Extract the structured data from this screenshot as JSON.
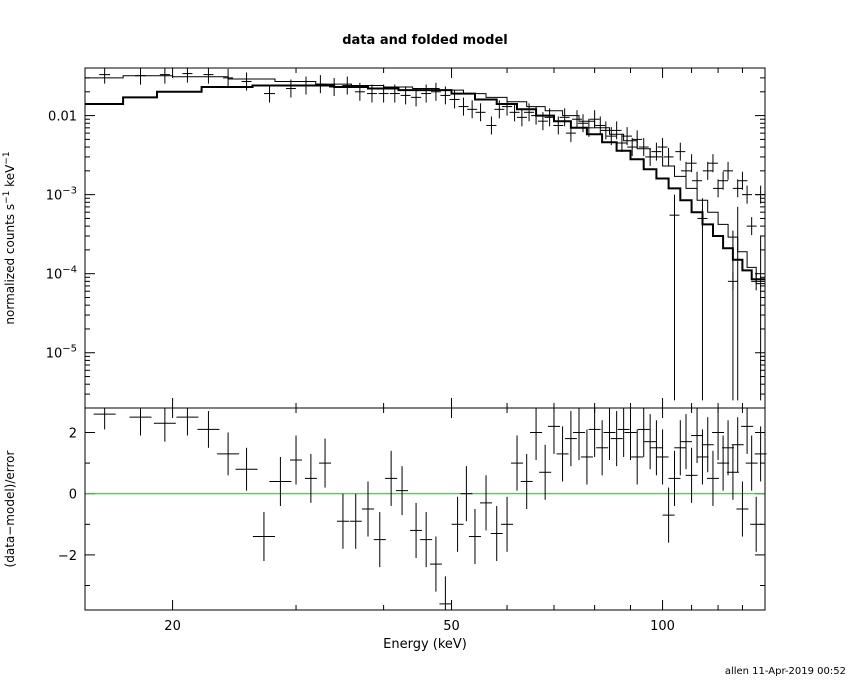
{
  "title": "data and folded model",
  "footer": "allen 11-Apr-2019 00:52",
  "colors": {
    "axis": "#000000",
    "zero_line": "#33cc33"
  },
  "chart_data": [
    {
      "type": "scatter",
      "panel": "upper",
      "scale": "log-log",
      "title": "data and folded model",
      "ylabel_main": "normalized counts s",
      "ylabel_sup1": "−1",
      "ylabel_mid": " keV",
      "ylabel_sup2": "−1",
      "xlim": [
        15,
        140
      ],
      "ylim": [
        2e-06,
        0.04
      ],
      "y_ticks": [
        {
          "value": 0.01,
          "mantissa": "0.01",
          "exp": ""
        },
        {
          "value": 0.001,
          "mantissa": "10",
          "exp": "−3"
        },
        {
          "value": 0.0001,
          "mantissa": "10",
          "exp": "−4"
        },
        {
          "value": 1e-05,
          "mantissa": "10",
          "exp": "−5"
        }
      ],
      "series": [
        {
          "kind": "data",
          "points": [
            [
              16.0,
              0.033,
              1.0
            ],
            [
              18.0,
              0.032,
              1.0
            ],
            [
              19.5,
              0.033,
              0.7
            ],
            [
              21.0,
              0.034,
              0.8
            ],
            [
              22.5,
              0.033,
              0.7
            ],
            [
              24.0,
              0.03,
              0.7
            ],
            [
              25.5,
              0.027,
              0.7
            ],
            [
              27.5,
              0.019,
              1.0
            ],
            [
              29.5,
              0.022,
              0.8
            ],
            [
              31.0,
              0.024,
              0.8
            ],
            [
              32.5,
              0.025,
              0.7
            ],
            [
              34.0,
              0.023,
              0.7
            ],
            [
              35.5,
              0.024,
              0.7
            ],
            [
              37.0,
              0.02,
              0.7
            ],
            [
              38.5,
              0.019,
              0.7
            ],
            [
              40.0,
              0.019,
              0.7
            ],
            [
              41.5,
              0.019,
              0.7
            ],
            [
              43.0,
              0.018,
              0.7
            ],
            [
              44.5,
              0.017,
              0.6
            ],
            [
              46.0,
              0.019,
              0.6
            ],
            [
              47.5,
              0.02,
              0.6
            ],
            [
              49.0,
              0.018,
              0.6
            ],
            [
              50.5,
              0.016,
              0.6
            ],
            [
              52.0,
              0.013,
              0.6
            ],
            [
              53.5,
              0.012,
              0.6
            ],
            [
              55.0,
              0.011,
              0.6
            ],
            [
              57.0,
              0.0075,
              0.6
            ],
            [
              58.5,
              0.012,
              0.6
            ],
            [
              60.0,
              0.013,
              0.6
            ],
            [
              61.5,
              0.011,
              0.6
            ],
            [
              63.0,
              0.0095,
              0.6
            ],
            [
              64.5,
              0.011,
              0.6
            ],
            [
              66.0,
              0.01,
              0.6
            ],
            [
              67.5,
              0.0085,
              0.6
            ],
            [
              69.0,
              0.0095,
              0.6
            ],
            [
              71.0,
              0.0075,
              0.6
            ],
            [
              72.5,
              0.0095,
              0.6
            ],
            [
              74.0,
              0.006,
              0.6
            ],
            [
              75.5,
              0.009,
              0.6
            ],
            [
              77.0,
              0.008,
              0.6
            ],
            [
              78.5,
              0.007,
              0.6
            ],
            [
              80.0,
              0.009,
              0.6
            ],
            [
              81.5,
              0.0075,
              0.6
            ],
            [
              83.0,
              0.0065,
              0.6
            ],
            [
              84.5,
              0.0055,
              0.6
            ],
            [
              86.0,
              0.0065,
              0.6
            ],
            [
              87.5,
              0.0045,
              0.6
            ],
            [
              89.0,
              0.0055,
              0.6
            ],
            [
              90.5,
              0.004,
              0.6
            ],
            [
              92.0,
              0.005,
              0.6
            ],
            [
              94.0,
              0.004,
              0.6
            ],
            [
              96.0,
              0.003,
              0.6
            ],
            [
              98.0,
              0.0035,
              0.6
            ],
            [
              100.0,
              0.004,
              0.6
            ],
            [
              102.0,
              0.003,
              0.6
            ],
            [
              104.0,
              0.00055,
              0.6
            ],
            [
              106.0,
              0.0035,
              0.6
            ],
            [
              108.0,
              0.002,
              0.6
            ],
            [
              110.0,
              0.0025,
              0.6
            ],
            [
              112.0,
              0.0015,
              0.6
            ],
            [
              114.0,
              0.0005,
              0.6
            ],
            [
              116.0,
              0.002,
              0.6
            ],
            [
              118.0,
              0.0025,
              0.6
            ],
            [
              120.0,
              0.0012,
              0.6
            ],
            [
              122.0,
              0.0015,
              0.6
            ],
            [
              124.0,
              0.002,
              0.6
            ],
            [
              126.0,
              8e-05,
              0.6
            ],
            [
              128.0,
              0.0012,
              0.6
            ],
            [
              130.0,
              0.0015,
              0.6
            ],
            [
              132.0,
              0.001,
              0.6
            ],
            [
              134.0,
              0.0004,
              0.6
            ],
            [
              136.0,
              8e-05,
              0.6
            ],
            [
              138.0,
              0.001,
              0.6
            ]
          ],
          "long_error_bars": [
            [
              104.0,
              2.5e-06,
              0.001
            ],
            [
              114.0,
              2.5e-06,
              0.0009
            ],
            [
              126.0,
              2.5e-06,
              0.00035
            ],
            [
              128.0,
              2.5e-06,
              0.0007
            ],
            [
              138.0,
              2.5e-06,
              0.0003
            ]
          ]
        },
        {
          "kind": "model",
          "name": "folded model (thin)",
          "steps": [
            [
              15.0,
              0.03
            ],
            [
              17.0,
              0.032
            ],
            [
              20.0,
              0.031
            ],
            [
              24.0,
              0.029
            ],
            [
              28.0,
              0.027
            ],
            [
              32.0,
              0.025
            ],
            [
              36.0,
              0.024
            ],
            [
              40.0,
              0.023
            ],
            [
              44.0,
              0.022
            ],
            [
              48.0,
              0.021
            ],
            [
              52.0,
              0.019
            ],
            [
              56.0,
              0.017
            ],
            [
              60.0,
              0.015
            ],
            [
              64.0,
              0.013
            ],
            [
              68.0,
              0.0115
            ],
            [
              72.0,
              0.01
            ],
            [
              76.0,
              0.0085
            ],
            [
              80.0,
              0.007
            ],
            [
              84.0,
              0.0058
            ],
            [
              88.0,
              0.0048
            ],
            [
              92.0,
              0.0038
            ],
            [
              96.0,
              0.003
            ],
            [
              100.0,
              0.0023
            ],
            [
              104.0,
              0.0017
            ],
            [
              108.0,
              0.0012
            ],
            [
              112.0,
              0.00085
            ],
            [
              116.0,
              0.0006
            ],
            [
              120.0,
              0.00042
            ],
            [
              124.0,
              0.00029
            ],
            [
              128.0,
              0.00019
            ],
            [
              132.0,
              0.00012
            ],
            [
              136.0,
              7.5e-05
            ],
            [
              140.0,
              5e-05
            ]
          ]
        },
        {
          "kind": "model",
          "name": "folded model (thick)",
          "steps": [
            [
              15.0,
              0.014
            ],
            [
              17.0,
              0.017
            ],
            [
              19.0,
              0.02
            ],
            [
              22.0,
              0.023
            ],
            [
              26.0,
              0.024
            ],
            [
              30.0,
              0.024
            ],
            [
              34.0,
              0.023
            ],
            [
              38.0,
              0.022
            ],
            [
              42.0,
              0.021
            ],
            [
              46.0,
              0.021
            ],
            [
              50.0,
              0.019
            ],
            [
              54.0,
              0.016
            ],
            [
              58.0,
              0.014
            ],
            [
              62.0,
              0.012
            ],
            [
              66.0,
              0.01
            ],
            [
              70.0,
              0.0085
            ],
            [
              74.0,
              0.007
            ],
            [
              78.0,
              0.0058
            ],
            [
              82.0,
              0.0046
            ],
            [
              86.0,
              0.0036
            ],
            [
              90.0,
              0.0028
            ],
            [
              94.0,
              0.0021
            ],
            [
              98.0,
              0.0016
            ],
            [
              102.0,
              0.0012
            ],
            [
              106.0,
              0.00085
            ],
            [
              110.0,
              0.0006
            ],
            [
              114.0,
              0.00042
            ],
            [
              118.0,
              0.0003
            ],
            [
              122.0,
              0.00021
            ],
            [
              126.0,
              0.00015
            ],
            [
              130.0,
              0.00011
            ],
            [
              134.0,
              8.5e-05
            ],
            [
              140.0,
              6e-05
            ]
          ]
        }
      ]
    },
    {
      "type": "scatter",
      "panel": "lower",
      "scale": "log-x",
      "xlabel": "Energy (keV)",
      "ylabel": "(data−model)/error",
      "xlim": [
        15,
        140
      ],
      "ylim": [
        -3.8,
        2.8
      ],
      "x_ticks": [
        {
          "value": 20,
          "label": "20"
        },
        {
          "value": 50,
          "label": "50"
        },
        {
          "value": 100,
          "label": "100"
        }
      ],
      "y_ticks": [
        {
          "value": 2,
          "label": "2"
        },
        {
          "value": 0,
          "label": "0"
        },
        {
          "value": -2,
          "label": "−2"
        }
      ],
      "zero_line": 0,
      "residuals": [
        [
          16.0,
          2.6,
          0.5
        ],
        [
          18.0,
          2.5,
          0.6
        ],
        [
          19.5,
          2.3,
          0.6
        ],
        [
          21.0,
          2.5,
          0.6
        ],
        [
          22.5,
          2.1,
          0.6
        ],
        [
          24.0,
          1.3,
          0.7
        ],
        [
          25.5,
          0.8,
          0.7
        ],
        [
          27.0,
          -1.4,
          0.8
        ],
        [
          28.5,
          0.4,
          0.8
        ],
        [
          30.0,
          1.1,
          0.8
        ],
        [
          31.5,
          0.5,
          0.8
        ],
        [
          33.0,
          1.0,
          0.8
        ],
        [
          35.0,
          -0.9,
          0.9
        ],
        [
          36.5,
          -0.9,
          0.9
        ],
        [
          38.0,
          -0.5,
          0.9
        ],
        [
          39.5,
          -1.5,
          0.9
        ],
        [
          41.0,
          0.5,
          0.9
        ],
        [
          42.5,
          0.1,
          0.8
        ],
        [
          44.5,
          -1.2,
          0.9
        ],
        [
          46.0,
          -1.5,
          0.9
        ],
        [
          47.5,
          -2.3,
          0.9
        ],
        [
          49.0,
          -3.6,
          0.9
        ],
        [
          51.0,
          -1.0,
          0.9
        ],
        [
          52.5,
          0.0,
          0.9
        ],
        [
          54.0,
          -1.4,
          0.9
        ],
        [
          56.0,
          -0.3,
          0.9
        ],
        [
          58.0,
          -1.3,
          0.9
        ],
        [
          60.0,
          -1.0,
          0.9
        ],
        [
          62.0,
          1.0,
          0.9
        ],
        [
          64.0,
          0.4,
          0.9
        ],
        [
          66.0,
          2.0,
          0.9
        ],
        [
          68.0,
          0.7,
          0.9
        ],
        [
          70.0,
          2.2,
          0.9
        ],
        [
          72.0,
          1.3,
          0.9
        ],
        [
          74.0,
          1.8,
          0.9
        ],
        [
          76.0,
          2.0,
          0.9
        ],
        [
          78.0,
          1.2,
          0.9
        ],
        [
          80.0,
          2.1,
          0.9
        ],
        [
          82.0,
          1.5,
          0.9
        ],
        [
          84.0,
          2.0,
          0.9
        ],
        [
          86.0,
          1.8,
          0.9
        ],
        [
          88.0,
          2.1,
          0.9
        ],
        [
          90.0,
          2.0,
          0.9
        ],
        [
          92.0,
          1.2,
          0.9
        ],
        [
          94.0,
          2.1,
          0.9
        ],
        [
          96.0,
          1.7,
          0.9
        ],
        [
          98.0,
          1.5,
          0.9
        ],
        [
          100.0,
          1.2,
          0.9
        ],
        [
          102.0,
          -0.7,
          0.9
        ],
        [
          104.0,
          0.5,
          0.9
        ],
        [
          106.0,
          1.5,
          0.9
        ],
        [
          108.0,
          1.7,
          0.9
        ],
        [
          110.0,
          0.6,
          0.9
        ],
        [
          112.0,
          1.9,
          0.9
        ],
        [
          114.0,
          1.2,
          0.9
        ],
        [
          116.0,
          1.6,
          0.9
        ],
        [
          118.0,
          0.5,
          0.9
        ],
        [
          120.0,
          2.0,
          0.9
        ],
        [
          122.0,
          1.0,
          0.9
        ],
        [
          124.0,
          1.5,
          0.9
        ],
        [
          126.0,
          0.7,
          0.9
        ],
        [
          128.0,
          1.6,
          0.9
        ],
        [
          130.0,
          -0.5,
          0.9
        ],
        [
          132.0,
          2.2,
          0.9
        ],
        [
          134.0,
          1.0,
          0.9
        ],
        [
          136.0,
          -1.0,
          0.9
        ],
        [
          138.0,
          1.3,
          0.9
        ]
      ]
    }
  ]
}
